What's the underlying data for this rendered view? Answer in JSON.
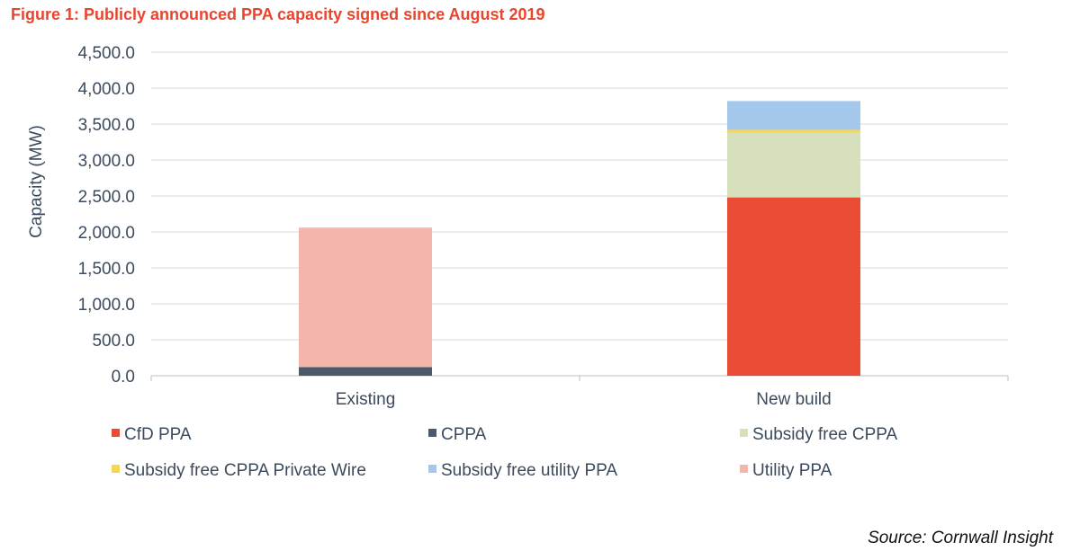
{
  "figure_title": "Figure 1: Publicly announced PPA capacity signed since August 2019",
  "source": "Source: Cornwall Insight",
  "chart_data": {
    "type": "bar",
    "stacked": true,
    "categories": [
      "Existing",
      "New build"
    ],
    "ylabel": "Capacity (MW)",
    "ylim": [
      0,
      4500
    ],
    "yticks": [
      0,
      500,
      1000,
      1500,
      2000,
      2500,
      3000,
      3500,
      4000,
      4500
    ],
    "ytick_labels": [
      "0.0",
      "500.0",
      "1,000.0",
      "1,500.0",
      "2,000.0",
      "2,500.0",
      "3,000.0",
      "3,500.0",
      "4,000.0",
      "4,500.0"
    ],
    "grid": true,
    "legend_position": "bottom",
    "series": [
      {
        "name": "CfD PPA",
        "color": "#e94b34",
        "values": [
          0,
          2480
        ]
      },
      {
        "name": "CPPA",
        "color": "#4a5a6a",
        "values": [
          120,
          0
        ]
      },
      {
        "name": "Subsidy free CPPA",
        "color": "#d6e0bd",
        "values": [
          0,
          900
        ]
      },
      {
        "name": "Subsidy free CPPA Private Wire",
        "color": "#f5d552",
        "values": [
          0,
          40
        ]
      },
      {
        "name": "Subsidy free utility PPA",
        "color": "#a4c8ec",
        "values": [
          0,
          400
        ]
      },
      {
        "name": "Utility PPA",
        "color": "#f4b6ac",
        "values": [
          1940,
          0
        ]
      }
    ]
  }
}
